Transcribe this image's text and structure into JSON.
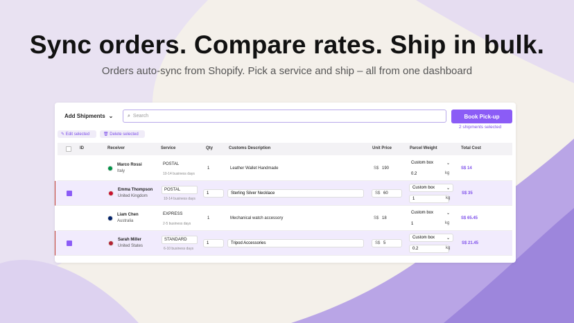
{
  "header": {
    "title": "Sync orders. Compare rates. Ship in bulk.",
    "subtitle": "Orders auto-sync from Shopify. Pick a service and ship – all from one dashboard"
  },
  "toolbar": {
    "add_button": "Add Shipments",
    "search_placeholder": "Search",
    "pickup_button": "Book Pick-up",
    "selected_count": "2 shipments selected",
    "edit_button": "Edit selected",
    "delete_button": "Delete selected"
  },
  "table": {
    "columns": [
      "ID",
      "Receiver",
      "Service",
      "Qty",
      "Customs Description",
      "Unit Price",
      "Parcel Weight",
      "Total Cost"
    ],
    "rows": [
      {
        "selected": false,
        "name": "Marco Rossi",
        "country": "Italy",
        "service": "POSTAL",
        "days": "10-14 business days",
        "qty": "1",
        "description": "Leather Wallet Handmade",
        "currency": "S$",
        "price": "190",
        "parcel": "Custom box",
        "weight": "0.2",
        "unit": "kg",
        "total": "S$ 14"
      },
      {
        "selected": true,
        "name": "Emma Thompson",
        "country": "United Kingdom",
        "service": "POSTAL",
        "days": "10-14 business days",
        "qty": "1",
        "description": "Sterling Silver Necklace",
        "currency": "S$",
        "price": "60",
        "parcel": "Custom box",
        "weight": "1",
        "unit": "kg",
        "total": "S$ 35"
      },
      {
        "selected": false,
        "name": "Liam Chen",
        "country": "Australia",
        "service": "EXPRESS",
        "days": "2-5 business days",
        "qty": "1",
        "description": "Mechanical watch accessory",
        "currency": "S$",
        "price": "18",
        "parcel": "Custom box",
        "weight": "1",
        "unit": "kg",
        "total": "S$ 65.45"
      },
      {
        "selected": true,
        "name": "Sarah Miller",
        "country": "United States",
        "service": "STANDARD",
        "days": "6-10 business days",
        "qty": "1",
        "description": "Tripod Accessories",
        "currency": "S$",
        "price": "5",
        "parcel": "Custom box",
        "weight": "0.2",
        "unit": "kg",
        "total": "S$ 21.45"
      }
    ]
  }
}
